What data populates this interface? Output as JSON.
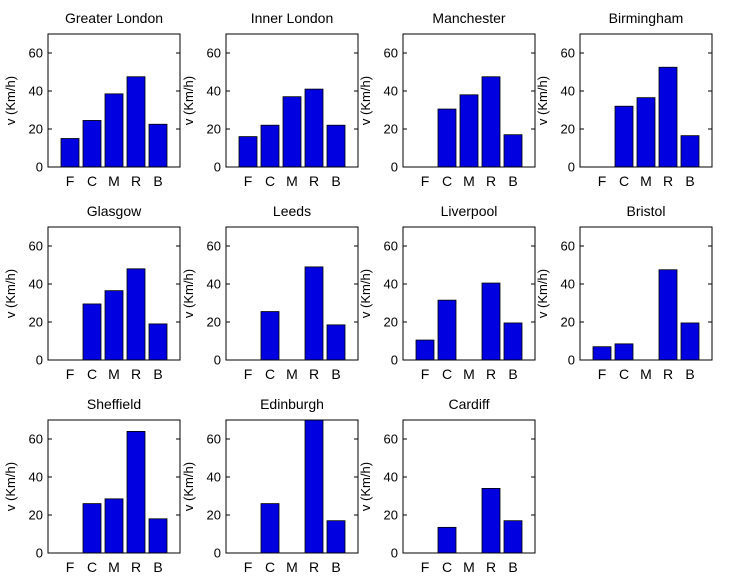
{
  "chart_data": {
    "type": "bar",
    "layout": "small-multiples 3x4",
    "categories": [
      "F",
      "C",
      "M",
      "R",
      "B"
    ],
    "ylabel": "v (Km/h)",
    "ylim": [
      0,
      70
    ],
    "yticks": [
      0,
      20,
      40,
      60
    ],
    "bar_color": "#0000e0",
    "panels": [
      {
        "title": "Greater London",
        "values": [
          15,
          24.5,
          38.5,
          47.5,
          22.5
        ]
      },
      {
        "title": "Inner London",
        "values": [
          16,
          22,
          37,
          41,
          22
        ]
      },
      {
        "title": "Manchester",
        "values": [
          0,
          30.5,
          38,
          47.5,
          17
        ]
      },
      {
        "title": "Birmingham",
        "values": [
          0,
          32,
          36.5,
          52.5,
          16.5
        ]
      },
      {
        "title": "Glasgow",
        "values": [
          0,
          29.5,
          36.5,
          48,
          19
        ]
      },
      {
        "title": "Leeds",
        "values": [
          0,
          25.5,
          0,
          49,
          18.5
        ]
      },
      {
        "title": "Liverpool",
        "values": [
          10.5,
          31.5,
          0,
          40.5,
          19.5
        ]
      },
      {
        "title": "Bristol",
        "values": [
          7,
          8.5,
          0,
          47.5,
          19.5
        ]
      },
      {
        "title": "Sheffield",
        "values": [
          0,
          26,
          28.5,
          64,
          18
        ]
      },
      {
        "title": "Edinburgh",
        "values": [
          0,
          26,
          0,
          70,
          17
        ]
      },
      {
        "title": "Cardiff",
        "values": [
          0,
          13.5,
          0,
          34,
          17
        ]
      }
    ]
  }
}
